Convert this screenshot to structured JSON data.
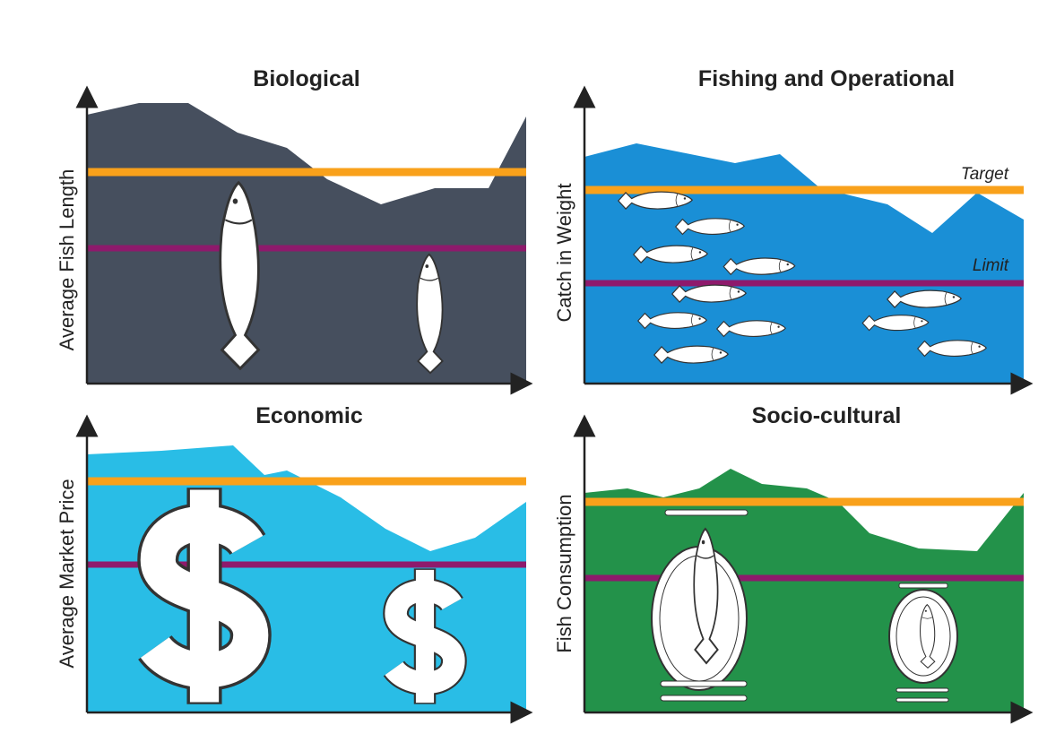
{
  "panels": [
    {
      "title": "Biological",
      "y_label": "Average Fish Length"
    },
    {
      "title": "Fishing and Operational",
      "y_label": "Catch in Weight",
      "target_label": "Target",
      "limit_label": "Limit"
    },
    {
      "title": "Economic",
      "y_label": "Average Market Price"
    },
    {
      "title": "Socio-cultural",
      "y_label": "Fish Consumption"
    }
  ]
}
